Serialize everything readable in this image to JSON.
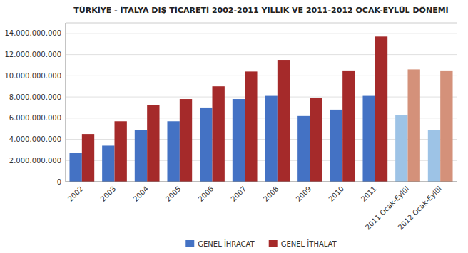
{
  "chart_data": {
    "type": "bar",
    "title": "TÜRKİYE - İTALYA DIŞ TİCARETİ 2002-2011 YILLIK VE 2011-2012 OCAK-EYLÜL DÖNEMİ",
    "categories": [
      "2002",
      "2003",
      "2004",
      "2005",
      "2006",
      "2007",
      "2008",
      "2009",
      "2010",
      "2011",
      "2011 Ocak-Eylül",
      "2012 Ocak-Eylül"
    ],
    "series": [
      {
        "name": "GENEL İHRACAT",
        "color": "#4472C4",
        "colors": [
          "#4472C4",
          "#4472C4",
          "#4472C4",
          "#4472C4",
          "#4472C4",
          "#4472C4",
          "#4472C4",
          "#4472C4",
          "#4472C4",
          "#4472C4",
          "#9DC3E6",
          "#9DC3E6"
        ],
        "values": [
          2700000000,
          3400000000,
          4900000000,
          5700000000,
          7000000000,
          7800000000,
          8100000000,
          6200000000,
          6800000000,
          8100000000,
          6300000000,
          4900000000
        ]
      },
      {
        "name": "GENEL İTHALAT",
        "color": "#A52A2A",
        "colors": [
          "#A52A2A",
          "#A52A2A",
          "#A52A2A",
          "#A52A2A",
          "#A52A2A",
          "#A52A2A",
          "#A52A2A",
          "#A52A2A",
          "#A52A2A",
          "#A52A2A",
          "#D4917A",
          "#D4917A"
        ],
        "values": [
          4500000000,
          5700000000,
          7200000000,
          7800000000,
          9000000000,
          10400000000,
          11500000000,
          7900000000,
          10500000000,
          13700000000,
          10600000000,
          10500000000
        ]
      }
    ],
    "ylim": [
      0,
      15000000000
    ],
    "yticks": [
      0,
      {
        "value": 2000000000,
        "label": "2.000.000.000"
      },
      {
        "value": 4000000000,
        "label": "4.000.000.000"
      },
      {
        "value": 6000000000,
        "label": "6.000.000.000"
      },
      {
        "value": 8000000000,
        "label": "8.000.000.000"
      },
      {
        "value": 10000000000,
        "label": "10.000.000.000"
      },
      {
        "value": 12000000000,
        "label": "12.000.000.000"
      },
      {
        "value": 14000000000,
        "label": "14.000.000.000"
      }
    ],
    "grid": true,
    "legend": "bottom"
  }
}
